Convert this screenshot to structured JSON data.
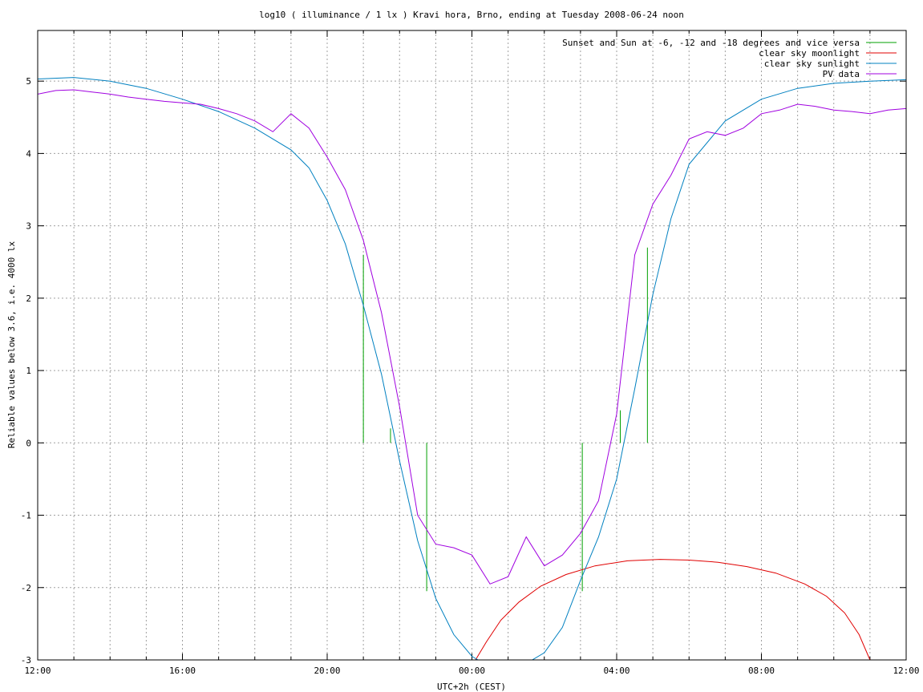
{
  "chart_data": {
    "type": "line",
    "title": "log10 ( illuminance / 1 lx ) Kravi hora, Brno, ending at Tuesday 2008-06-24 noon",
    "xlabel": "UTC+2h (CEST)",
    "ylabel": "Reliable values below 3.6, i.e. 4000 lx",
    "x_unit": "hours since 12:00 on 2008-06-23 (CEST)",
    "xlim": [
      0,
      24
    ],
    "ylim": [
      -3,
      5.7
    ],
    "grid": true,
    "legend_position": "top-right",
    "x_ticks": [
      {
        "value": 0,
        "label": "12:00"
      },
      {
        "value": 4,
        "label": "16:00"
      },
      {
        "value": 8,
        "label": "20:00"
      },
      {
        "value": 12,
        "label": "00:00"
      },
      {
        "value": 16,
        "label": "04:00"
      },
      {
        "value": 20,
        "label": "08:00"
      },
      {
        "value": 24,
        "label": "12:00"
      }
    ],
    "y_ticks": [
      {
        "value": -3,
        "label": "-3"
      },
      {
        "value": -2,
        "label": "-2"
      },
      {
        "value": -1,
        "label": "-1"
      },
      {
        "value": 0,
        "label": "0"
      },
      {
        "value": 1,
        "label": "1"
      },
      {
        "value": 2,
        "label": "2"
      },
      {
        "value": 3,
        "label": "3"
      },
      {
        "value": 4,
        "label": "4"
      },
      {
        "value": 5,
        "label": "5"
      }
    ],
    "series": [
      {
        "name": "Sunset and Sun at -6, -12 and -18 degrees and vice versa",
        "color": "#00a000",
        "style": "vertical-markers",
        "markers": [
          {
            "x": 9.0,
            "y0": 0,
            "y1": 2.6
          },
          {
            "x": 9.75,
            "y0": 0,
            "y1": 0.2
          },
          {
            "x": 10.75,
            "y0": 0,
            "y1": -2.05
          },
          {
            "x": 15.05,
            "y0": 0,
            "y1": -2.05
          },
          {
            "x": 16.1,
            "y0": 0,
            "y1": 0.45
          },
          {
            "x": 16.85,
            "y0": 0,
            "y1": 2.7
          }
        ]
      },
      {
        "name": "clear sky moonlight",
        "color": "#e00000",
        "x": [
          12.1,
          12.4,
          12.8,
          13.3,
          13.9,
          14.6,
          15.4,
          16.3,
          17.2,
          18.0,
          18.8,
          19.6,
          20.4,
          21.2,
          21.8,
          22.3,
          22.7,
          23.0
        ],
        "y": [
          -3.0,
          -2.75,
          -2.45,
          -2.2,
          -1.98,
          -1.82,
          -1.7,
          -1.63,
          -1.61,
          -1.62,
          -1.65,
          -1.71,
          -1.8,
          -1.95,
          -2.12,
          -2.35,
          -2.65,
          -3.0
        ]
      },
      {
        "name": "clear sky sunlight",
        "color": "#0080c0",
        "x": [
          0,
          1,
          2,
          3,
          4,
          5,
          6,
          7,
          7.5,
          8,
          8.5,
          9,
          9.5,
          10,
          10.5,
          11,
          11.5,
          12,
          12.5,
          13,
          13.5,
          14,
          14.5,
          15,
          15.5,
          16,
          16.5,
          17,
          17.5,
          18,
          19,
          20,
          21,
          22,
          23,
          24
        ],
        "y": [
          5.03,
          5.05,
          5.0,
          4.9,
          4.75,
          4.58,
          4.35,
          4.05,
          3.8,
          3.35,
          2.75,
          1.9,
          0.95,
          -0.25,
          -1.35,
          -2.15,
          -2.65,
          -2.95,
          -3.1,
          -3.15,
          -3.05,
          -2.9,
          -2.55,
          -1.9,
          -1.3,
          -0.5,
          0.75,
          2.05,
          3.1,
          3.85,
          4.45,
          4.75,
          4.9,
          4.97,
          5.0,
          5.02
        ]
      },
      {
        "name": "PV data",
        "color": "#a000e0",
        "x": [
          0,
          0.5,
          1,
          1.5,
          2,
          2.5,
          3,
          3.5,
          4,
          4.5,
          5,
          5.5,
          6,
          6.5,
          7,
          7.5,
          8,
          8.5,
          9,
          9.5,
          10,
          10.5,
          11,
          11.5,
          12,
          12.5,
          13,
          13.5,
          14,
          14.5,
          15,
          15.5,
          16,
          16.5,
          17,
          17.5,
          18,
          18.5,
          19,
          19.5,
          20,
          20.5,
          21,
          21.5,
          22,
          22.5,
          23,
          23.5,
          24
        ],
        "y": [
          4.82,
          4.87,
          4.88,
          4.85,
          4.82,
          4.78,
          4.75,
          4.72,
          4.7,
          4.68,
          4.62,
          4.55,
          4.45,
          4.3,
          4.55,
          4.35,
          3.95,
          3.5,
          2.8,
          1.8,
          0.5,
          -1.0,
          -1.4,
          -1.45,
          -1.55,
          -1.95,
          -1.85,
          -1.3,
          -1.7,
          -1.55,
          -1.25,
          -0.8,
          0.4,
          2.6,
          3.3,
          3.7,
          4.2,
          4.3,
          4.25,
          4.35,
          4.55,
          4.6,
          4.68,
          4.65,
          4.6,
          4.58,
          4.55,
          4.6,
          4.62
        ]
      }
    ],
    "annotations": []
  }
}
